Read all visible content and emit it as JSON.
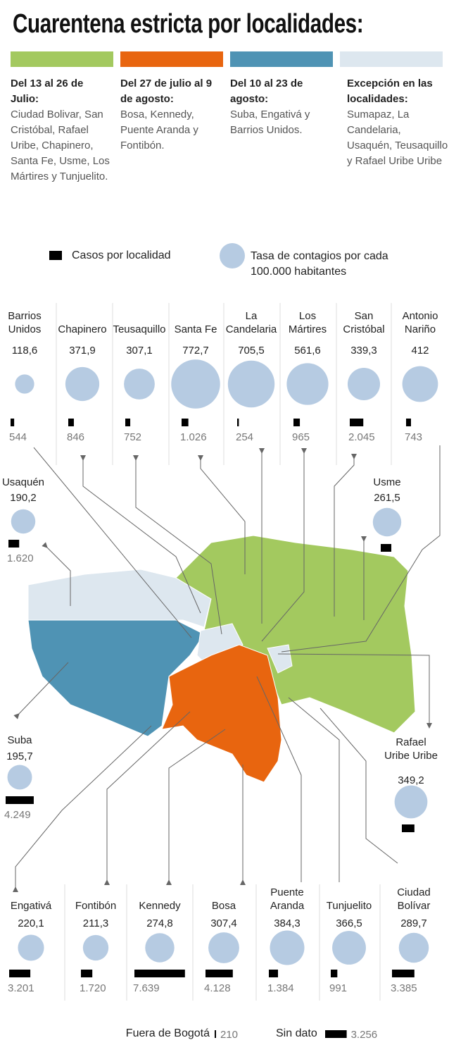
{
  "title": "Cuarentena estricta por localidades:",
  "phases": [
    {
      "color": "#a3c95f",
      "heading": "Del 13 al 26 de Julio:",
      "body": "Ciudad Bolivar, San Cristóbal, Rafael Uribe, Chapinero, Santa Fe, Usme, Los Mártires y Tunjuelito."
    },
    {
      "color": "#e8650f",
      "heading": "Del 27 de julio al 9 de agosto:",
      "body": "Bosa, Kennedy, Puente Aranda y Fontibón."
    },
    {
      "color": "#4f93b4",
      "heading": "Del 10 al 23 de agosto:",
      "body": "Suba, Engativá y Barrios Unidos."
    },
    {
      "color": "#dde7ef",
      "heading": "Excepción en las localidades:",
      "body": "Sumapaz, La Candelaria, Usaquén, Teusaquillo y Rafael Uribe Uribe"
    }
  ],
  "chart_data": {
    "type": "bubble-bar",
    "categories": [
      "Barrios Unidos",
      "Chapinero",
      "Teusaquillo",
      "Santa Fe",
      "La Candelaria",
      "Los Mártires",
      "San Cristóbal",
      "Antonio Nariño",
      "Usaquén",
      "Usme",
      "Suba",
      "Rafael Uribe Uribe",
      "Engativá",
      "Fontibón",
      "Kennedy",
      "Bosa",
      "Puente Aranda",
      "Tunjuelito",
      "Ciudad Bolívar",
      "Fuera de Bogotá",
      "Sin dato"
    ],
    "series": [
      {
        "name": "Casos por localidad",
        "color": "#000000",
        "values": [
          544,
          846,
          752,
          1026,
          254,
          965,
          2045,
          743,
          1620,
          1600,
          4249,
          1900,
          3201,
          1720,
          7639,
          4128,
          1384,
          991,
          3385,
          210,
          3256
        ],
        "value_labels": [
          "544",
          "846",
          "752",
          "1.026",
          "254",
          "965",
          "2.045",
          "743",
          "1.620",
          null,
          "4.249",
          null,
          "3.201",
          "1.720",
          "7.639",
          "4.128",
          "1.384",
          "991",
          "3.385",
          "210",
          "3.256"
        ]
      },
      {
        "name": "Tasa de contagios por cada 100.000 habitantes",
        "color": "#b6cbe2",
        "values": [
          118.6,
          371.9,
          307.1,
          772.7,
          705.5,
          561.6,
          339.3,
          412,
          190.2,
          261.5,
          195.7,
          349.2,
          220.1,
          211.3,
          274.8,
          307.4,
          384.3,
          366.5,
          289.7,
          null,
          null
        ],
        "value_labels": [
          "118,6",
          "371,9",
          "307,1",
          "772,7",
          "705,5",
          "561,6",
          "339,3",
          "412",
          "190,2",
          "261,5",
          "195,7",
          "349,2",
          "220,1",
          "211,3",
          "274,8",
          "307,4",
          "384,3",
          "366,5",
          "289,7",
          null,
          null
        ]
      }
    ]
  }
}
